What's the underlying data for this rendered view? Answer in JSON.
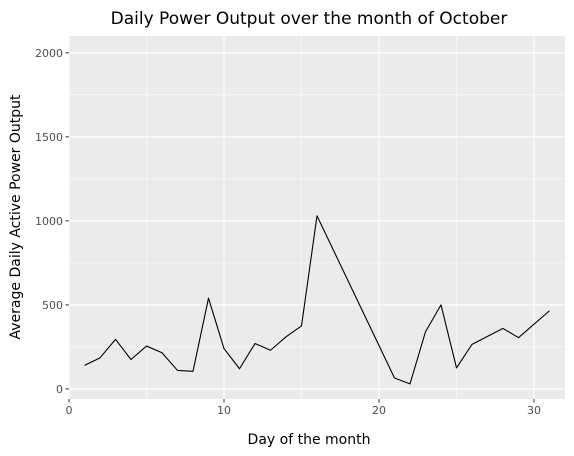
{
  "chart_data": {
    "type": "line",
    "title": "Daily Power Output over the month of October",
    "xlabel": "Day of the month",
    "ylabel": "Average Daily Active Power Output",
    "xlim": [
      0,
      32
    ],
    "ylim": [
      -60,
      2100
    ],
    "x_ticks": [
      0,
      10,
      20,
      30
    ],
    "y_ticks": [
      0,
      500,
      1000,
      1500,
      2000
    ],
    "grid": true,
    "legend": "none",
    "colors": {
      "panel_background": "#ebebeb",
      "grid_major": "#ffffff",
      "line": "#000000"
    },
    "series": [
      {
        "x": [
          1,
          2,
          3,
          4,
          5,
          6,
          7,
          8,
          9,
          10,
          11,
          12,
          13,
          14,
          15,
          16,
          21,
          22,
          23,
          24,
          25,
          26,
          28,
          29,
          31
        ],
        "values": [
          140,
          185,
          295,
          175,
          255,
          215,
          110,
          105,
          540,
          240,
          120,
          270,
          230,
          310,
          375,
          1030,
          65,
          30,
          340,
          500,
          125,
          265,
          360,
          305,
          465
        ]
      }
    ]
  }
}
